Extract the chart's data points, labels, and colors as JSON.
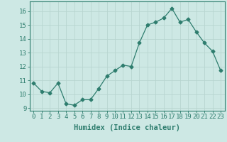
{
  "x": [
    0,
    1,
    2,
    3,
    4,
    5,
    6,
    7,
    8,
    9,
    10,
    11,
    12,
    13,
    14,
    15,
    16,
    17,
    18,
    19,
    20,
    21,
    22,
    23
  ],
  "y": [
    10.8,
    10.2,
    10.1,
    10.8,
    9.3,
    9.2,
    9.6,
    9.6,
    10.4,
    11.3,
    11.7,
    12.1,
    12.0,
    13.7,
    15.0,
    15.2,
    15.5,
    16.2,
    15.2,
    15.4,
    14.5,
    13.7,
    13.1,
    11.7
  ],
  "line_color": "#2e7d6e",
  "marker": "D",
  "marker_size": 2.5,
  "background_color": "#cde8e4",
  "grid_color": "#b8d5d0",
  "axis_color": "#2e7d6e",
  "xlabel": "Humidex (Indice chaleur)",
  "tick_fontsize": 6.5,
  "xlabel_fontsize": 7.5,
  "xlim": [
    -0.5,
    23.5
  ],
  "ylim": [
    8.8,
    16.7
  ],
  "yticks": [
    9,
    10,
    11,
    12,
    13,
    14,
    15,
    16
  ]
}
